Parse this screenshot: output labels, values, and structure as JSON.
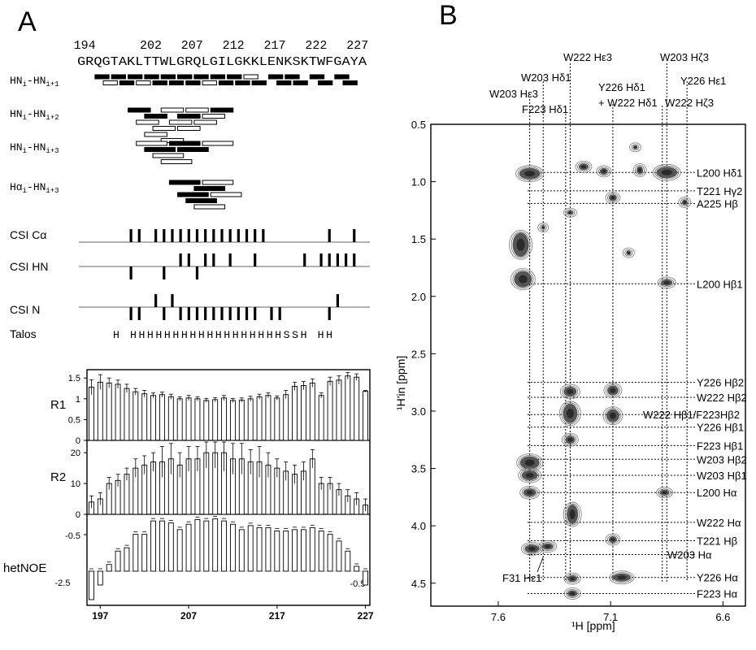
{
  "figure": {
    "panel_a_label": "A",
    "panel_b_label": "B"
  },
  "panel_a": {
    "residue_start": 194,
    "residue_numbers": [
      "194",
      "202",
      "207",
      "212",
      "217",
      "222",
      "227"
    ],
    "sequence": "GRQGTAKLTTWLGRQLGILGKKLENKSKTWFGAYA",
    "noe_rows": [
      {
        "label": "HNi-HNi+1",
        "bars": [
          [
            196,
            197,
            "f"
          ],
          [
            198,
            199,
            "f"
          ],
          [
            200,
            201,
            "f"
          ],
          [
            202,
            203,
            "f"
          ],
          [
            204,
            205,
            "f"
          ],
          [
            206,
            207,
            "f"
          ],
          [
            208,
            209,
            "f"
          ],
          [
            210,
            211,
            "f"
          ],
          [
            212,
            213,
            "f"
          ],
          [
            214,
            215,
            "o"
          ],
          [
            217,
            218,
            "f"
          ],
          [
            219,
            220,
            "f"
          ],
          [
            222,
            223,
            "f"
          ],
          [
            225,
            226,
            "f"
          ],
          [
            197,
            198,
            "o"
          ],
          [
            199,
            200,
            "f"
          ],
          [
            201,
            202,
            "o"
          ],
          [
            203,
            204,
            "f"
          ],
          [
            205,
            206,
            "f"
          ],
          [
            207,
            208,
            "f"
          ],
          [
            209,
            210,
            "o"
          ],
          [
            211,
            212,
            "f"
          ],
          [
            213,
            214,
            "f"
          ],
          [
            215,
            216,
            "f"
          ],
          [
            218,
            219,
            "f"
          ],
          [
            220,
            221,
            "f"
          ],
          [
            223,
            224,
            "f"
          ],
          [
            226,
            227,
            "f"
          ]
        ]
      },
      {
        "label": "HNi-HNi+2",
        "bars": [
          [
            200,
            202,
            "f"
          ],
          [
            202,
            204,
            "f"
          ],
          [
            204,
            206,
            "o"
          ],
          [
            206,
            208,
            "f"
          ],
          [
            201,
            203,
            "o"
          ],
          [
            203,
            205,
            "o"
          ],
          [
            205,
            207,
            "o"
          ],
          [
            207,
            209,
            "o"
          ],
          [
            209,
            211,
            "o"
          ],
          [
            202,
            204,
            "o"
          ],
          [
            204,
            206,
            "o"
          ],
          [
            206,
            208,
            "o"
          ],
          [
            208,
            210,
            "o"
          ],
          [
            210,
            212,
            "f"
          ]
        ]
      },
      {
        "label": "HNi-HNi+3",
        "bars": [
          [
            201,
            204,
            "o"
          ],
          [
            209,
            212,
            "o"
          ],
          [
            202,
            205,
            "f"
          ],
          [
            205,
            208,
            "f"
          ],
          [
            203,
            206,
            "o"
          ],
          [
            206,
            209,
            "f"
          ],
          [
            204,
            207,
            "o"
          ]
        ]
      },
      {
        "label": "Hαi-HNi+3",
        "bars": [
          [
            205,
            208,
            "f"
          ],
          [
            208,
            211,
            "f"
          ],
          [
            206,
            209,
            "f"
          ],
          [
            209,
            212,
            "o"
          ],
          [
            207,
            210,
            "f"
          ],
          [
            210,
            213,
            "o"
          ],
          [
            208,
            211,
            "o"
          ]
        ]
      }
    ],
    "csi_ca": {
      "label": "CSI Cα",
      "up": [
        200,
        201,
        203,
        204,
        205,
        206,
        207,
        208,
        209,
        210,
        211,
        212,
        213,
        214,
        215,
        216,
        224,
        227
      ],
      "down": []
    },
    "csi_hn": {
      "label": "CSI HN",
      "up": [
        206,
        207,
        209,
        210,
        212,
        215,
        221,
        223,
        224,
        225,
        226,
        227
      ],
      "down": [
        200,
        204,
        208
      ]
    },
    "csi_n": {
      "label": "CSI N",
      "up": [
        203,
        205,
        225
      ],
      "down": [
        200,
        201,
        204,
        206,
        207,
        208,
        209,
        210,
        211,
        212,
        213,
        214,
        215,
        217,
        218,
        224
      ]
    },
    "talos": {
      "label": "Talos",
      "text": "H HHHHHHHHHHHHHHHHHHSSH HH"
    },
    "dyn_x_ticks": [
      "197",
      "207",
      "217",
      "227"
    ],
    "r1": {
      "label": "R1",
      "ticks": [
        "1.5",
        "1",
        "0.5",
        "0"
      ],
      "residues": [
        196,
        197,
        198,
        199,
        200,
        201,
        202,
        203,
        204,
        205,
        206,
        207,
        208,
        209,
        210,
        211,
        212,
        213,
        214,
        215,
        216,
        217,
        218,
        219,
        220,
        221,
        222,
        223,
        224,
        225,
        226,
        227
      ],
      "values": [
        1.28,
        1.4,
        1.38,
        1.35,
        1.25,
        1.17,
        1.12,
        1.08,
        1.1,
        1.05,
        1.0,
        1.02,
        1.0,
        0.96,
        0.98,
        1.02,
        0.96,
        0.97,
        1.0,
        1.05,
        1.08,
        1.02,
        1.1,
        1.3,
        1.32,
        1.38,
        1.08,
        1.42,
        1.45,
        1.55,
        1.52,
        1.18
      ],
      "errors": [
        0.18,
        0.18,
        0.12,
        0.1,
        0.1,
        0.08,
        0.08,
        0.06,
        0.06,
        0.06,
        0.05,
        0.06,
        0.05,
        0.05,
        0.05,
        0.06,
        0.05,
        0.05,
        0.06,
        0.06,
        0.06,
        0.05,
        0.1,
        0.1,
        0.1,
        0.1,
        0.06,
        0.1,
        0.1,
        0.08,
        0.08,
        0.02
      ]
    },
    "r2": {
      "label": "R2",
      "ticks": [
        "20",
        "10",
        "0"
      ],
      "residues": [
        196,
        197,
        198,
        199,
        200,
        201,
        202,
        203,
        204,
        205,
        206,
        207,
        208,
        209,
        210,
        211,
        212,
        213,
        214,
        215,
        216,
        217,
        218,
        219,
        220,
        221,
        222,
        223,
        224,
        225,
        226,
        227
      ],
      "values": [
        4,
        5,
        10,
        11,
        13,
        15,
        16,
        17,
        17,
        18,
        16,
        18,
        18,
        20,
        20,
        20,
        18,
        18,
        17,
        17,
        16,
        15,
        14,
        13,
        14,
        18,
        10,
        10,
        8,
        6,
        5,
        3
      ],
      "errors": [
        2,
        2,
        2,
        2,
        2,
        3,
        3,
        3,
        5,
        5,
        4,
        4,
        4,
        5,
        5,
        6,
        5,
        5,
        4,
        5,
        4,
        3,
        3,
        3,
        3,
        3,
        2,
        2,
        2,
        2,
        2,
        2
      ]
    },
    "hetnoe": {
      "label": "hetNOE",
      "tick_top": "-0.5",
      "tick_left_bottom": "-2.5",
      "tick_right_bottom": "-0.5",
      "residues": [
        196,
        197,
        198,
        199,
        200,
        201,
        202,
        203,
        204,
        205,
        206,
        207,
        208,
        209,
        210,
        211,
        212,
        213,
        214,
        215,
        216,
        217,
        218,
        219,
        220,
        221,
        222,
        223,
        224,
        225,
        226,
        227
      ],
      "values": [
        -2.55,
        -1.5,
        -0.1,
        -0.3,
        -0.35,
        -0.55,
        -0.55,
        -0.75,
        -0.75,
        -0.72,
        -0.62,
        -0.7,
        -0.77,
        -0.75,
        -0.78,
        -0.75,
        -0.7,
        -0.62,
        -0.68,
        -0.65,
        -0.65,
        -0.6,
        -0.6,
        -0.62,
        -0.62,
        -0.65,
        -0.6,
        -0.55,
        -0.45,
        -0.3,
        0.3,
        -1.78
      ]
    }
  },
  "panel_b": {
    "x_label": "¹H [ppm]",
    "y_label": "¹H'in [ppm]",
    "x_ticks": [
      "7.6",
      "7.1",
      "6.6"
    ],
    "y_ticks": [
      "0.5",
      "1.0",
      "1.5",
      "2.0",
      "2.5",
      "3.0",
      "3.5",
      "4.0",
      "4.5"
    ],
    "top_labels": [
      {
        "text": "W222 Hε3",
        "ppm": 7.28
      },
      {
        "text": "W203 Hζ3",
        "ppm": 6.85
      },
      {
        "text": "W203 Hδ1",
        "ppm": 7.4
      },
      {
        "text": "Y226 Hδ1",
        "ppm": 7.09
      },
      {
        "text": "Y226 Hε1",
        "ppm": 6.76
      },
      {
        "text": "+ W222 Hδ1",
        "ppm": 7.09
      },
      {
        "text": "W203 Hε3",
        "ppm": 7.46
      },
      {
        "text": "F223 Hδ1",
        "ppm": 7.3
      },
      {
        "text": "W222 Hζ3",
        "ppm": 6.87
      }
    ],
    "right_labels": [
      {
        "text": "L200 Hδ1",
        "ppm": 0.92
      },
      {
        "text": "T221 Hγ2",
        "ppm": 1.08
      },
      {
        "text": "A225 Hβ",
        "ppm": 1.19
      },
      {
        "text": "L200 Hβ1",
        "ppm": 1.89
      },
      {
        "text": "Y226 Hβ2",
        "ppm": 2.75
      },
      {
        "text": "W222 Hβ2",
        "ppm": 2.88
      },
      {
        "text": "W222 Hβ1/F223Hβ2",
        "ppm": 3.03
      },
      {
        "text": "Y226 Hβ1",
        "ppm": 3.14
      },
      {
        "text": "F223 Hβ1",
        "ppm": 3.3
      },
      {
        "text": "W203 Hβ2",
        "ppm": 3.42
      },
      {
        "text": "W203 Hβ1",
        "ppm": 3.56
      },
      {
        "text": "L200 Hα",
        "ppm": 3.71
      },
      {
        "text": "W222 Hα",
        "ppm": 3.97
      },
      {
        "text": "T221 Hβ",
        "ppm": 4.13
      },
      {
        "text": "W203 Hα",
        "ppm": 4.25
      },
      {
        "text": "Y226 Hα",
        "ppm": 4.45
      },
      {
        "text": "F223 Hα",
        "ppm": 4.59
      }
    ],
    "bottom_label": "F31 Hε1",
    "peaks": [
      {
        "x": 7.46,
        "y": 0.93,
        "w": 26,
        "h": 14
      },
      {
        "x": 6.85,
        "y": 0.92,
        "w": 26,
        "h": 14
      },
      {
        "x": 6.97,
        "y": 0.9,
        "w": 8,
        "h": 10
      },
      {
        "x": 7.22,
        "y": 0.87,
        "w": 12,
        "h": 8
      },
      {
        "x": 7.13,
        "y": 0.91,
        "w": 10,
        "h": 8
      },
      {
        "x": 7.09,
        "y": 1.14,
        "w": 10,
        "h": 8
      },
      {
        "x": 6.77,
        "y": 1.18,
        "w": 7,
        "h": 7
      },
      {
        "x": 7.28,
        "y": 1.27,
        "w": 8,
        "h": 5
      },
      {
        "x": 7.5,
        "y": 1.55,
        "w": 20,
        "h": 30
      },
      {
        "x": 7.49,
        "y": 1.85,
        "w": 22,
        "h": 20
      },
      {
        "x": 6.85,
        "y": 1.88,
        "w": 14,
        "h": 8
      },
      {
        "x": 7.28,
        "y": 2.83,
        "w": 16,
        "h": 12
      },
      {
        "x": 7.09,
        "y": 2.82,
        "w": 14,
        "h": 12
      },
      {
        "x": 7.28,
        "y": 3.02,
        "w": 18,
        "h": 24
      },
      {
        "x": 7.09,
        "y": 3.04,
        "w": 16,
        "h": 16
      },
      {
        "x": 7.28,
        "y": 3.25,
        "w": 12,
        "h": 10
      },
      {
        "x": 7.46,
        "y": 3.45,
        "w": 24,
        "h": 16
      },
      {
        "x": 7.46,
        "y": 3.56,
        "w": 20,
        "h": 12
      },
      {
        "x": 7.46,
        "y": 3.71,
        "w": 16,
        "h": 10
      },
      {
        "x": 6.86,
        "y": 3.71,
        "w": 12,
        "h": 7
      },
      {
        "x": 7.27,
        "y": 3.9,
        "w": 14,
        "h": 24
      },
      {
        "x": 7.09,
        "y": 4.12,
        "w": 10,
        "h": 8
      },
      {
        "x": 7.45,
        "y": 4.2,
        "w": 18,
        "h": 10
      },
      {
        "x": 7.38,
        "y": 4.18,
        "w": 14,
        "h": 8
      },
      {
        "x": 7.05,
        "y": 4.45,
        "w": 22,
        "h": 10
      },
      {
        "x": 7.27,
        "y": 4.46,
        "w": 12,
        "h": 8
      },
      {
        "x": 7.27,
        "y": 4.59,
        "w": 12,
        "h": 8
      },
      {
        "x": 6.99,
        "y": 0.7,
        "w": 6,
        "h": 5
      },
      {
        "x": 7.02,
        "y": 1.62,
        "w": 6,
        "h": 6
      },
      {
        "x": 7.4,
        "y": 1.4,
        "w": 5,
        "h": 5
      }
    ]
  }
}
